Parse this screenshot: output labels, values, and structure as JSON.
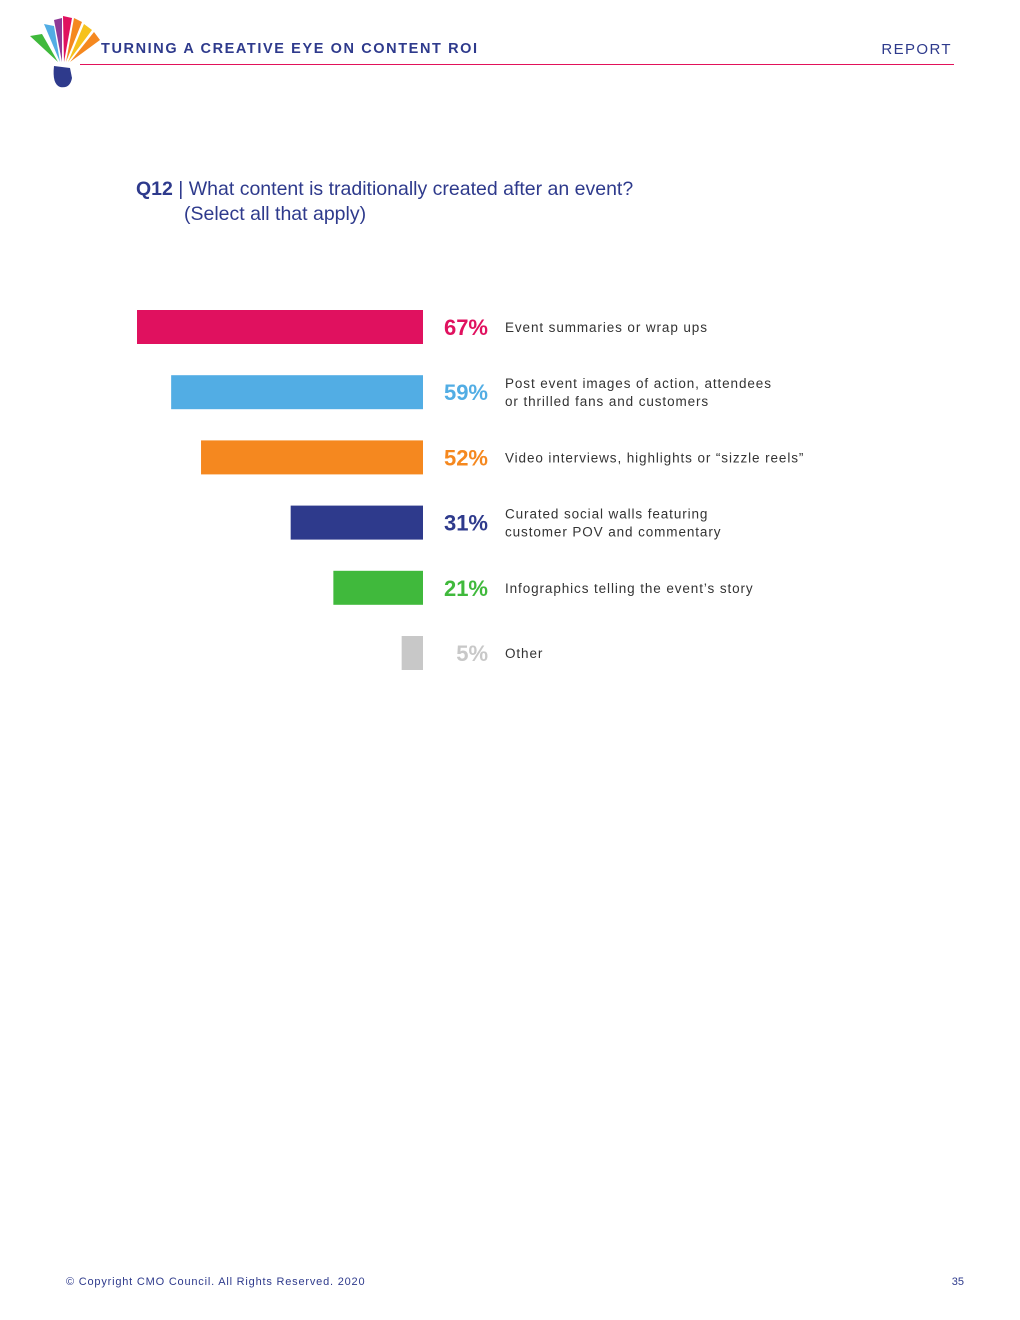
{
  "header": {
    "title": "TURNING A CREATIVE EYE ON CONTENT ROI",
    "section": "REPORT"
  },
  "question": {
    "number": "Q12",
    "separator": "|",
    "text": "What content is traditionally created after an event?",
    "subtext": "(Select all that apply)"
  },
  "chart_data": {
    "type": "bar",
    "orientation": "horizontal",
    "value_suffix": "%",
    "categories": [
      [
        "Event summaries or wrap ups"
      ],
      [
        "Post event images of action, attendees",
        "or thrilled fans and customers"
      ],
      [
        "Video interviews, highlights or “sizzle reels”"
      ],
      [
        "Curated social walls featuring",
        "customer POV and commentary"
      ],
      [
        "Infographics telling the event’s story"
      ],
      [
        "Other"
      ]
    ],
    "values": [
      67,
      59,
      52,
      31,
      21,
      5
    ],
    "colors": [
      "#e0115f",
      "#52ade4",
      "#f5881f",
      "#2e3a8c",
      "#40b93c",
      "#c8c8c8"
    ],
    "title": "",
    "xlabel": "",
    "ylabel": "",
    "xlim": [
      0,
      67
    ],
    "grid": false,
    "legend": "none"
  },
  "footer": {
    "copyright": "© Copyright CMO Council. All Rights Reserved. 2020",
    "page_number": "35"
  },
  "logo": {
    "icon": "feather-fan-logo",
    "colors": [
      "#40b93c",
      "#52ade4",
      "#e0115f",
      "#8e3a96",
      "#f5881f",
      "#f6c21d",
      "#2e3a8c"
    ]
  }
}
